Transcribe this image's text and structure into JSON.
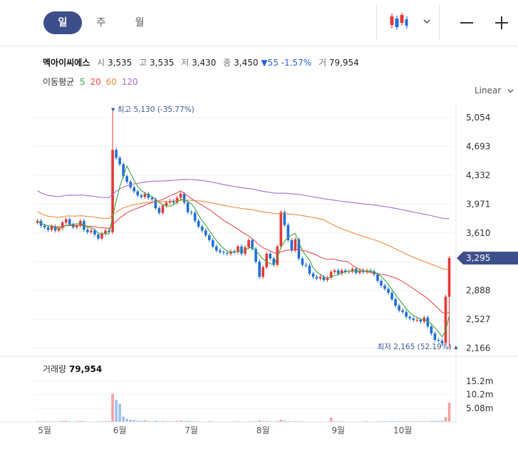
{
  "tabs": [
    {
      "label": "일",
      "active": true
    },
    {
      "label": "주",
      "active": false
    },
    {
      "label": "월",
      "active": false
    }
  ],
  "toolbar": {
    "chart_type_icon": "candlestick-icon",
    "dropdown_icon": "chevron-down-icon",
    "zoom_out": "—",
    "zoom_in": "+"
  },
  "stock": {
    "name": "멕아이씨에스",
    "open_label": "시",
    "open": "3,535",
    "high_label": "고",
    "high": "3,535",
    "low_label": "저",
    "low": "3,430",
    "close_label": "종",
    "close": "3,450",
    "change": "▼55",
    "change_pct": "-1.57%",
    "volume_label": "거",
    "volume": "79,954"
  },
  "ma_legend": {
    "label": "이동평균",
    "items": [
      {
        "period": "5",
        "color": "#3aa63a"
      },
      {
        "period": "20",
        "color": "#e84c4c"
      },
      {
        "period": "60",
        "color": "#f0883e"
      },
      {
        "period": "120",
        "color": "#a86ad6"
      }
    ]
  },
  "scale_label": "Linear",
  "chart_data": {
    "type": "candlestick",
    "y_ticks": [
      5054,
      4693,
      4332,
      3971,
      3610,
      3249,
      2888,
      2527,
      2166
    ],
    "y_tick_labels": [
      "5,054",
      "4,693",
      "4,332",
      "3,971",
      "3,610",
      "",
      "2,888",
      "2,527",
      "2,166"
    ],
    "ylim": [
      2100,
      5250
    ],
    "x_tick_labels": [
      "5월",
      "6월",
      "7월",
      "8월",
      "9월",
      "10월"
    ],
    "x_tick_index": [
      2,
      23,
      43,
      63,
      84,
      102
    ],
    "current_price": {
      "value": 3295,
      "label": "3,295"
    },
    "max_annotation": {
      "text": "최고 5,130 (-35.77%)",
      "value": 5130,
      "index": 21
    },
    "min_annotation": {
      "text": "최저 2,165 (52.19%)",
      "value": 2165,
      "index": 115
    },
    "up_color": "#e53935",
    "down_color": "#1e6fd9",
    "closes": [
      3760,
      3700,
      3680,
      3650,
      3690,
      3640,
      3670,
      3740,
      3780,
      3720,
      3680,
      3700,
      3760,
      3650,
      3620,
      3640,
      3590,
      3540,
      3600,
      3640,
      3620,
      4650,
      4550,
      4470,
      4320,
      4250,
      4180,
      4130,
      4080,
      4060,
      4100,
      4050,
      4030,
      3920,
      3860,
      3950,
      3990,
      4010,
      3990,
      4050,
      4100,
      3990,
      3870,
      3860,
      3760,
      3690,
      3640,
      3580,
      3520,
      3440,
      3390,
      3370,
      3360,
      3350,
      3380,
      3370,
      3440,
      3350,
      3430,
      3520,
      3410,
      3250,
      3060,
      3180,
      3350,
      3290,
      3210,
      3440,
      3870,
      3710,
      3520,
      3390,
      3530,
      3290,
      3210,
      3200,
      3100,
      3060,
      3040,
      3060,
      3020,
      3050,
      3120,
      3140,
      3100,
      3140,
      3120,
      3130,
      3160,
      3110,
      3140,
      3120,
      3140,
      3130,
      3090,
      3010,
      2950,
      2910,
      2860,
      2780,
      2700,
      2640,
      2620,
      2560,
      2540,
      2520,
      2520,
      2500,
      2550,
      2440,
      2350,
      2270,
      2260,
      2230,
      2810,
      3295
    ],
    "volumes": [
      0.3,
      0.2,
      0.3,
      0.2,
      0.25,
      0.2,
      0.3,
      0.4,
      0.5,
      0.3,
      0.2,
      0.3,
      0.4,
      0.3,
      0.2,
      0.2,
      0.2,
      0.2,
      0.3,
      0.3,
      0.4,
      10.5,
      8.2,
      6.8,
      2.0,
      1.2,
      0.8,
      0.7,
      0.5,
      0.4,
      0.6,
      0.4,
      0.3,
      0.5,
      0.3,
      0.4,
      0.3,
      0.3,
      0.3,
      0.4,
      0.5,
      0.3,
      0.4,
      0.3,
      0.3,
      0.3,
      0.2,
      0.2,
      0.3,
      0.2,
      0.2,
      0.2,
      0.2,
      0.2,
      0.2,
      0.2,
      0.3,
      0.2,
      0.2,
      0.3,
      0.2,
      0.3,
      0.6,
      0.3,
      0.4,
      0.3,
      0.2,
      0.4,
      0.8,
      0.5,
      0.4,
      0.3,
      0.3,
      0.3,
      0.2,
      0.2,
      0.2,
      0.2,
      0.2,
      0.2,
      0.2,
      0.2,
      1.6,
      0.3,
      0.2,
      0.3,
      0.2,
      0.2,
      0.2,
      0.2,
      0.2,
      0.2,
      0.3,
      0.2,
      0.2,
      0.2,
      0.3,
      0.3,
      0.3,
      0.4,
      0.3,
      0.3,
      0.3,
      0.3,
      0.3,
      0.3,
      0.3,
      0.3,
      0.3,
      0.3,
      0.4,
      0.4,
      0.4,
      0.5,
      1.8,
      7.2
    ],
    "vol_axis_labels": [
      "15.2m",
      "10.2m",
      "5.08m"
    ],
    "vol_axis_values": [
      15.2,
      10.2,
      5.08
    ],
    "vol_max": 17
  },
  "volume_panel": {
    "label": "거래량",
    "value": "79,954"
  }
}
